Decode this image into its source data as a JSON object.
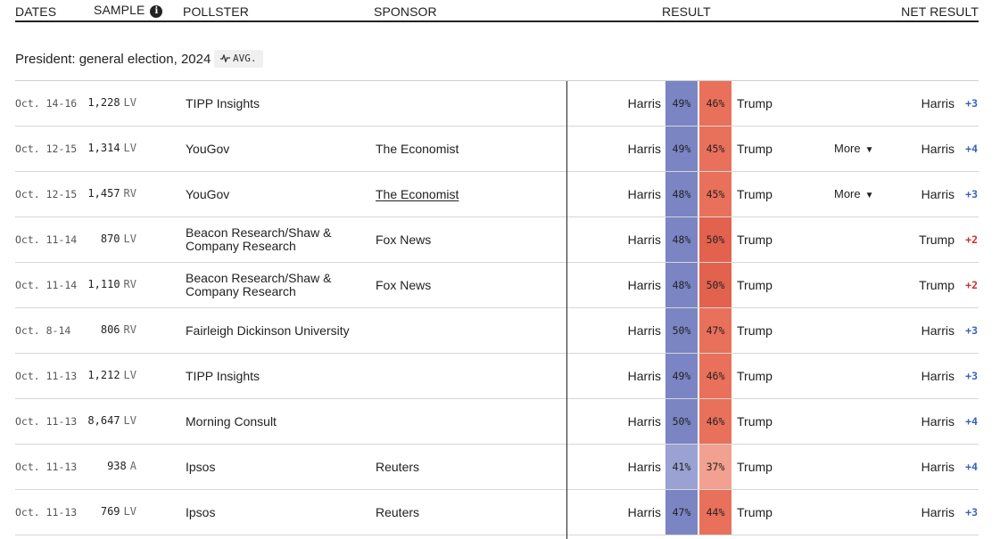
{
  "columns": {
    "dates": "DATES",
    "sample": "SAMPLE",
    "pollster": "POLLSTER",
    "sponsor": "SPONSOR",
    "result": "RESULT",
    "net_result": "NET RESULT",
    "info_icon": "info-icon",
    "info_glyph": "i"
  },
  "section": {
    "title": "President: general election, 2024",
    "avg_label": "AVG.",
    "avg_icon": "trend-line-icon"
  },
  "colors": {
    "harris_strong": "#7b85c4",
    "harris_light": "#9aa1d3",
    "trump_strong": "#e9705a",
    "trump_stronger": "#e3624d",
    "trump_light": "#f2a08f",
    "margin_blue": "#3a62b8",
    "margin_red": "#c8322d"
  },
  "polls": [
    {
      "dates": "Oct. 14-16",
      "sample": "1,228",
      "pop": "LV",
      "pollster": "TIPP Insights",
      "sponsor": "",
      "sponsor_link": false,
      "cand_a": "Harris",
      "pct_a": "49%",
      "pct_b": "46%",
      "cand_b": "Trump",
      "more": "",
      "leader": "Harris",
      "margin": "+3",
      "leader_party": "D",
      "color_a": "#7b85c4",
      "color_b": "#e9705a"
    },
    {
      "dates": "Oct. 12-15",
      "sample": "1,314",
      "pop": "LV",
      "pollster": "YouGov",
      "sponsor": "The Economist",
      "sponsor_link": false,
      "cand_a": "Harris",
      "pct_a": "49%",
      "pct_b": "45%",
      "cand_b": "Trump",
      "more": "More",
      "leader": "Harris",
      "margin": "+4",
      "leader_party": "D",
      "color_a": "#7b85c4",
      "color_b": "#e9705a"
    },
    {
      "dates": "Oct. 12-15",
      "sample": "1,457",
      "pop": "RV",
      "pollster": "YouGov",
      "sponsor": "The Economist",
      "sponsor_link": true,
      "cand_a": "Harris",
      "pct_a": "48%",
      "pct_b": "45%",
      "cand_b": "Trump",
      "more": "More",
      "leader": "Harris",
      "margin": "+3",
      "leader_party": "D",
      "color_a": "#7b85c4",
      "color_b": "#e9705a"
    },
    {
      "dates": "Oct. 11-14",
      "sample": "870",
      "pop": "LV",
      "pollster": "Beacon Research/Shaw & Company Research",
      "sponsor": "Fox News",
      "sponsor_link": false,
      "cand_a": "Harris",
      "pct_a": "48%",
      "pct_b": "50%",
      "cand_b": "Trump",
      "more": "",
      "leader": "Trump",
      "margin": "+2",
      "leader_party": "R",
      "color_a": "#7b85c4",
      "color_b": "#e3624d"
    },
    {
      "dates": "Oct. 11-14",
      "sample": "1,110",
      "pop": "RV",
      "pollster": "Beacon Research/Shaw & Company Research",
      "sponsor": "Fox News",
      "sponsor_link": false,
      "cand_a": "Harris",
      "pct_a": "48%",
      "pct_b": "50%",
      "cand_b": "Trump",
      "more": "",
      "leader": "Trump",
      "margin": "+2",
      "leader_party": "R",
      "color_a": "#7b85c4",
      "color_b": "#e3624d"
    },
    {
      "dates": "Oct. 8-14",
      "sample": "806",
      "pop": "RV",
      "pollster": "Fairleigh Dickinson University",
      "sponsor": "",
      "sponsor_link": false,
      "cand_a": "Harris",
      "pct_a": "50%",
      "pct_b": "47%",
      "cand_b": "Trump",
      "more": "",
      "leader": "Harris",
      "margin": "+3",
      "leader_party": "D",
      "color_a": "#7b85c4",
      "color_b": "#e9705a"
    },
    {
      "dates": "Oct. 11-13",
      "sample": "1,212",
      "pop": "LV",
      "pollster": "TIPP Insights",
      "sponsor": "",
      "sponsor_link": false,
      "cand_a": "Harris",
      "pct_a": "49%",
      "pct_b": "46%",
      "cand_b": "Trump",
      "more": "",
      "leader": "Harris",
      "margin": "+3",
      "leader_party": "D",
      "color_a": "#7b85c4",
      "color_b": "#e9705a"
    },
    {
      "dates": "Oct. 11-13",
      "sample": "8,647",
      "pop": "LV",
      "pollster": "Morning Consult",
      "sponsor": "",
      "sponsor_link": false,
      "cand_a": "Harris",
      "pct_a": "50%",
      "pct_b": "46%",
      "cand_b": "Trump",
      "more": "",
      "leader": "Harris",
      "margin": "+4",
      "leader_party": "D",
      "color_a": "#7b85c4",
      "color_b": "#e9705a"
    },
    {
      "dates": "Oct. 11-13",
      "sample": "938",
      "pop": "A",
      "pollster": "Ipsos",
      "sponsor": "Reuters",
      "sponsor_link": false,
      "cand_a": "Harris",
      "pct_a": "41%",
      "pct_b": "37%",
      "cand_b": "Trump",
      "more": "",
      "leader": "Harris",
      "margin": "+4",
      "leader_party": "D",
      "color_a": "#9aa1d3",
      "color_b": "#f2a08f"
    },
    {
      "dates": "Oct. 11-13",
      "sample": "769",
      "pop": "LV",
      "pollster": "Ipsos",
      "sponsor": "Reuters",
      "sponsor_link": false,
      "cand_a": "Harris",
      "pct_a": "47%",
      "pct_b": "44%",
      "cand_b": "Trump",
      "more": "",
      "leader": "Harris",
      "margin": "+3",
      "leader_party": "D",
      "color_a": "#7b85c4",
      "color_b": "#e9705a"
    }
  ]
}
